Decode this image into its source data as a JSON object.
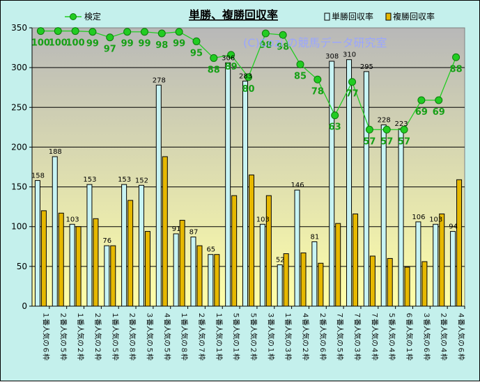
{
  "chart_data": {
    "type": "bar",
    "title": "単勝、複勝回収率",
    "watermark": "(C)Cozi の競馬データ研究室",
    "ylim": [
      0,
      350
    ],
    "yticks": [
      0,
      50,
      100,
      150,
      200,
      250,
      300,
      350
    ],
    "grid": true,
    "legend_position": "top",
    "categories": [
      "１番人気の６枠",
      "２番人気の５枠",
      "１番人気の２枠",
      "２番人気の２枠",
      "１番人気の５枠",
      "２番人気の８枠",
      "３番人気の５枠",
      "４番人気の５枠",
      "１番人気の８枠",
      "２番人気の７枠",
      "１番人気の１枠",
      "５番人気の１枠",
      "５番人気の２枠",
      "３番人気の１枠",
      "１番人気の３枠",
      "４番人気の２枠",
      "２番人気の６枠",
      "７番人気の５枠",
      "７番人気の３枠",
      "７番人気の４枠",
      "５番人気の４枠",
      "６番人気の１枠",
      "３番人気の６枠",
      "２番人気の４枠",
      "４番人気の６枠"
    ],
    "series": [
      {
        "name": "単勝回収率",
        "kind": "bar",
        "color": "#c8f4f4",
        "values": [
          158,
          188,
          103,
          153,
          76,
          153,
          152,
          278,
          91,
          87,
          65,
          306,
          283,
          103,
          52,
          146,
          81,
          308,
          310,
          295,
          228,
          223,
          106,
          103,
          94
        ],
        "labels": [
          "158",
          "188",
          "103",
          "153",
          "76",
          "153",
          "152",
          "278",
          "91",
          "87",
          "65",
          "306",
          "283",
          "103",
          "52",
          "146",
          "81",
          "308",
          "310",
          "295",
          "228",
          "223",
          "106",
          "103",
          "94"
        ]
      },
      {
        "name": "複勝回収率",
        "kind": "bar",
        "color": "#e6b800",
        "values": [
          120,
          117,
          100,
          110,
          76,
          133,
          94,
          188,
          108,
          76,
          65,
          139,
          165,
          139,
          66,
          67,
          54,
          104,
          116,
          63,
          60,
          49,
          56,
          116,
          159
        ]
      },
      {
        "name": "検定",
        "kind": "line",
        "color": "#22cc22",
        "values": [
          346,
          346,
          346,
          345,
          338,
          345,
          345,
          343,
          345,
          333,
          312,
          316,
          288,
          343,
          341,
          304,
          285,
          240,
          282,
          222,
          222,
          222,
          259,
          259,
          313
        ],
        "labels": [
          "100",
          "100",
          "100",
          "99",
          "97",
          "99",
          "99",
          "98",
          "99",
          "95",
          "88",
          "89",
          "80",
          "98",
          "98",
          "85",
          "78",
          "63",
          "77",
          "57",
          "57",
          "57",
          "69",
          "69",
          "88"
        ]
      }
    ]
  }
}
